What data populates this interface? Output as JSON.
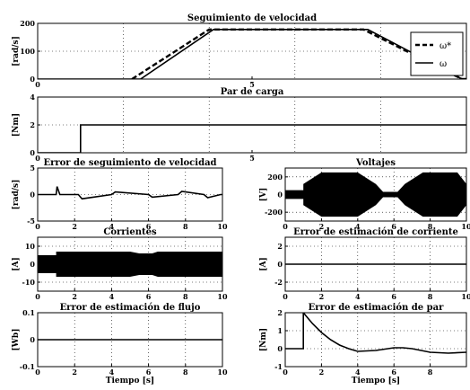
{
  "chart_data": [
    {
      "type": "line",
      "title": "Seguimiento de velocidad",
      "ylabel": "[rad/s]",
      "xlim": [
        0,
        10
      ],
      "ylim": [
        0,
        200
      ],
      "yticks": [
        0,
        100,
        200
      ],
      "xticks": [
        0,
        5
      ],
      "grid": true,
      "legend": {
        "placement": "right",
        "entries": [
          "ω*",
          "ω"
        ]
      },
      "series": [
        {
          "name": "ω*",
          "style": "dashed",
          "x": [
            2.2,
            4.0,
            7.6,
            9.9,
            10
          ],
          "y": [
            0,
            178,
            178,
            0,
            0
          ]
        },
        {
          "name": "ω",
          "style": "solid",
          "x": [
            0,
            2.4,
            4.1,
            7.7,
            9.9,
            10
          ],
          "y": [
            0,
            0,
            178,
            178,
            0,
            0
          ]
        }
      ]
    },
    {
      "type": "line",
      "title": "Par de carga",
      "ylabel": "[Nm]",
      "xlim": [
        0,
        10
      ],
      "ylim": [
        0,
        4
      ],
      "yticks": [
        0,
        2,
        4
      ],
      "xticks": [
        0,
        5
      ],
      "xticklabels": [
        "0",
        "5"
      ],
      "grid": true,
      "series": [
        {
          "x": [
            0,
            1,
            1,
            10
          ],
          "y": [
            0,
            0,
            2,
            2
          ]
        }
      ]
    },
    {
      "type": "line",
      "title": "Error de seguimiento de velocidad",
      "ylabel": "[rad/s]",
      "xlim": [
        0,
        10
      ],
      "ylim": [
        -5,
        5
      ],
      "yticks": [
        -5,
        0,
        5
      ],
      "xticks": [
        0,
        2,
        4,
        6,
        8,
        10
      ],
      "grid": true,
      "series": [
        {
          "x": [
            0,
            1,
            1.05,
            1.2,
            2.2,
            2.4,
            4.0,
            4.2,
            6.0,
            6.2,
            7.6,
            7.8,
            9.0,
            9.2,
            9.9,
            10
          ],
          "y": [
            0,
            0,
            1.5,
            0,
            0,
            -0.8,
            0,
            0.5,
            0,
            -0.5,
            0,
            0.6,
            0,
            -0.6,
            0,
            0
          ]
        }
      ]
    },
    {
      "type": "line",
      "title": "Voltajes",
      "ylabel": "[V]",
      "xlim": [
        0,
        10
      ],
      "ylim": [
        -300,
        300
      ],
      "yticks": [
        -200,
        0,
        200
      ],
      "xticks": [
        0,
        2,
        4,
        6,
        8,
        10
      ],
      "grid": true,
      "series": [
        {
          "x": [
            0,
            1,
            1,
            2,
            4,
            5,
            5.4,
            6.2,
            6.6,
            7.6,
            9.5,
            10
          ],
          "y": [
            50,
            50,
            120,
            250,
            250,
            120,
            30,
            30,
            120,
            250,
            250,
            120
          ]
        }
      ]
    },
    {
      "type": "line",
      "title": "Corrientes",
      "ylabel": "[A]",
      "xlim": [
        0,
        10
      ],
      "ylim": [
        -15,
        15
      ],
      "yticks": [
        -10,
        0,
        10
      ],
      "xticks": [
        0,
        2,
        4,
        6,
        8,
        10
      ],
      "grid": true,
      "series": [
        {
          "x": [
            0,
            1,
            1,
            5,
            5.5,
            6.2,
            6.5,
            10
          ],
          "y": [
            5,
            5,
            7,
            7,
            6,
            6,
            7,
            7
          ]
        }
      ]
    },
    {
      "type": "line",
      "title": "Error de estimación de corriente",
      "ylabel": "[A]",
      "xlim": [
        0,
        10
      ],
      "ylim": [
        -3,
        3
      ],
      "yticks": [
        -2,
        0,
        2
      ],
      "xticks": [
        0,
        2,
        4,
        6,
        8,
        10
      ],
      "grid": true,
      "series": [
        {
          "x": [
            0,
            10
          ],
          "y": [
            0,
            0
          ]
        }
      ]
    },
    {
      "type": "line",
      "title": "Error de estimación de flujo",
      "ylabel": "[Wb]",
      "xlabel": "Tiempo [s]",
      "xlim": [
        0,
        10
      ],
      "ylim": [
        -0.1,
        0.1
      ],
      "yticks": [
        -0.1,
        0,
        0.1
      ],
      "xticks": [
        0,
        2,
        4,
        6,
        8,
        10
      ],
      "grid": true,
      "series": [
        {
          "x": [
            0,
            10
          ],
          "y": [
            0,
            0
          ]
        }
      ]
    },
    {
      "type": "line",
      "title": "Error de estimación de par",
      "ylabel": "[Nm]",
      "xlabel": "Tiempo [s]",
      "xlim": [
        0,
        10
      ],
      "ylim": [
        -1,
        2
      ],
      "yticks": [
        -1,
        0,
        1,
        2
      ],
      "xticks": [
        0,
        2,
        4,
        6,
        8
      ],
      "grid": true,
      "series": [
        {
          "x": [
            0,
            1,
            1,
            1.5,
            2,
            2.5,
            3,
            3.5,
            4,
            5,
            6,
            6.5,
            7,
            8,
            9,
            10
          ],
          "y": [
            0,
            0,
            2,
            1.4,
            0.9,
            0.5,
            0.2,
            0.0,
            -0.15,
            -0.1,
            0.05,
            0.05,
            0.0,
            -0.2,
            -0.25,
            -0.2
          ]
        }
      ]
    }
  ]
}
